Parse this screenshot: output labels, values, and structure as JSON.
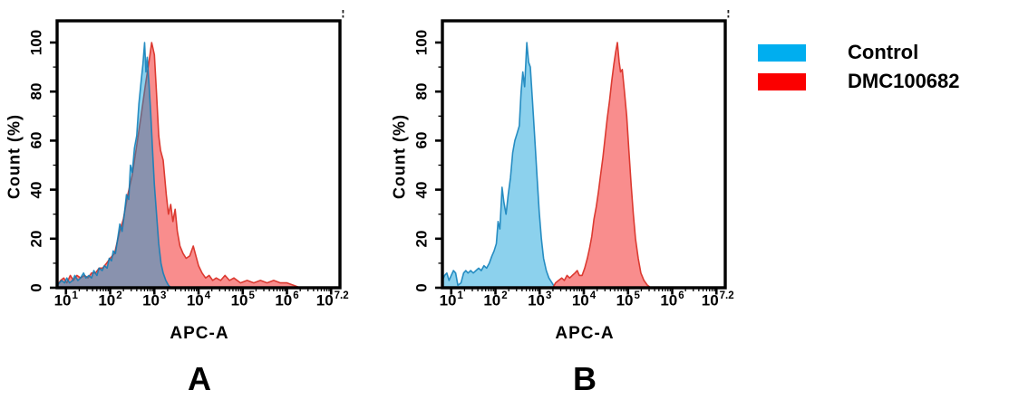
{
  "figure": {
    "background_color": "#ffffff",
    "frame_color": "#000000",
    "panels": [
      {
        "label": "A"
      },
      {
        "label": "B"
      }
    ],
    "legend": {
      "position": "right",
      "items": [
        {
          "label": "Control",
          "color": "#00AEEF"
        },
        {
          "label": "DMC100682",
          "color": "#FB0000"
        }
      ]
    }
  },
  "chart_data": [
    {
      "type": "area",
      "panel": "A",
      "title": "",
      "xlabel": "APC-A",
      "ylabel": "Count (%)",
      "x_scale": "log10",
      "x_range_log10": [
        0.8,
        7.2
      ],
      "ylim": [
        0,
        100
      ],
      "grid": false,
      "legend_position": "right-of-figure",
      "x_major_tick_logs": [
        1,
        2,
        3,
        4,
        5,
        6,
        7
      ],
      "x_tick_labels": [
        {
          "base": "10",
          "exp": "1",
          "at": 1
        },
        {
          "base": "10",
          "exp": "2",
          "at": 2
        },
        {
          "base": "10",
          "exp": "3",
          "at": 3
        },
        {
          "base": "10",
          "exp": "4",
          "at": 4
        },
        {
          "base": "10",
          "exp": "5",
          "at": 5
        },
        {
          "base": "10",
          "exp": "6",
          "at": 6
        },
        {
          "base": "10",
          "exp": "7.2",
          "at": 7.03
        }
      ],
      "y_ticks": [
        {
          "label": "0",
          "value": 0
        },
        {
          "label": "20",
          "value": 20
        },
        {
          "label": "40",
          "value": 40
        },
        {
          "label": "60",
          "value": 60
        },
        {
          "label": "80",
          "value": 80
        },
        {
          "label": "100",
          "value": 100
        }
      ],
      "series": [
        {
          "name": "DMC100682",
          "fill": "#F98D8D",
          "stroke": "#DC3A31",
          "peak_log10_x": 2.94,
          "peak_pct": 100,
          "points_log10x_pct": [
            [
              0.8,
              1
            ],
            [
              0.88,
              3
            ],
            [
              0.95,
              4
            ],
            [
              1.02,
              2
            ],
            [
              1.1,
              5
            ],
            [
              1.17,
              3
            ],
            [
              1.25,
              5
            ],
            [
              1.33,
              4
            ],
            [
              1.42,
              5
            ],
            [
              1.5,
              4
            ],
            [
              1.58,
              6
            ],
            [
              1.67,
              6
            ],
            [
              1.75,
              8
            ],
            [
              1.83,
              8
            ],
            [
              1.92,
              10
            ],
            [
              2.0,
              12
            ],
            [
              2.1,
              14
            ],
            [
              2.2,
              22
            ],
            [
              2.3,
              28
            ],
            [
              2.4,
              38
            ],
            [
              2.5,
              46
            ],
            [
              2.6,
              58
            ],
            [
              2.7,
              70
            ],
            [
              2.8,
              83
            ],
            [
              2.87,
              91
            ],
            [
              2.94,
              100
            ],
            [
              3.0,
              95
            ],
            [
              3.05,
              79
            ],
            [
              3.1,
              62
            ],
            [
              3.14,
              56
            ],
            [
              3.2,
              52
            ],
            [
              3.27,
              38
            ],
            [
              3.32,
              30
            ],
            [
              3.37,
              34
            ],
            [
              3.42,
              27
            ],
            [
              3.47,
              32
            ],
            [
              3.52,
              23
            ],
            [
              3.58,
              17
            ],
            [
              3.65,
              14
            ],
            [
              3.72,
              12
            ],
            [
              3.8,
              13
            ],
            [
              3.88,
              17
            ],
            [
              3.94,
              13
            ],
            [
              4.0,
              9
            ],
            [
              4.08,
              6
            ],
            [
              4.16,
              4
            ],
            [
              4.24,
              5
            ],
            [
              4.32,
              3
            ],
            [
              4.4,
              4
            ],
            [
              4.5,
              3
            ],
            [
              4.6,
              5
            ],
            [
              4.7,
              3
            ],
            [
              4.8,
              4
            ],
            [
              4.95,
              2
            ],
            [
              5.1,
              3
            ],
            [
              5.25,
              2
            ],
            [
              5.4,
              3
            ],
            [
              5.55,
              2
            ],
            [
              5.7,
              3
            ],
            [
              5.85,
              2
            ],
            [
              6.0,
              2
            ],
            [
              6.15,
              1
            ],
            [
              6.3,
              0
            ]
          ]
        },
        {
          "name": "Control",
          "fill": "rgba(0,153,215,0.45)",
          "stroke": "rgba(10,125,185,0.85)",
          "peak_log10_x": 2.78,
          "peak_pct": 100,
          "points_log10x_pct": [
            [
              0.8,
              1
            ],
            [
              0.85,
              2
            ],
            [
              0.9,
              3
            ],
            [
              0.97,
              2
            ],
            [
              1.02,
              4
            ],
            [
              1.08,
              2
            ],
            [
              1.15,
              3
            ],
            [
              1.2,
              5
            ],
            [
              1.27,
              3
            ],
            [
              1.33,
              4
            ],
            [
              1.4,
              6
            ],
            [
              1.45,
              4
            ],
            [
              1.52,
              5
            ],
            [
              1.58,
              4
            ],
            [
              1.63,
              7
            ],
            [
              1.7,
              5
            ],
            [
              1.75,
              8
            ],
            [
              1.82,
              7
            ],
            [
              1.87,
              9
            ],
            [
              1.93,
              8
            ],
            [
              1.98,
              12
            ],
            [
              2.03,
              11
            ],
            [
              2.07,
              15
            ],
            [
              2.12,
              14
            ],
            [
              2.17,
              20
            ],
            [
              2.22,
              26
            ],
            [
              2.27,
              23
            ],
            [
              2.32,
              30
            ],
            [
              2.37,
              38
            ],
            [
              2.42,
              36
            ],
            [
              2.46,
              50
            ],
            [
              2.5,
              47
            ],
            [
              2.55,
              57
            ],
            [
              2.6,
              62
            ],
            [
              2.65,
              75
            ],
            [
              2.7,
              84
            ],
            [
              2.74,
              91
            ],
            [
              2.78,
              100
            ],
            [
              2.81,
              88
            ],
            [
              2.84,
              94
            ],
            [
              2.88,
              83
            ],
            [
              2.92,
              71
            ],
            [
              2.96,
              56
            ],
            [
              3.0,
              42
            ],
            [
              3.05,
              30
            ],
            [
              3.1,
              18
            ],
            [
              3.15,
              10
            ],
            [
              3.2,
              6
            ],
            [
              3.26,
              3
            ],
            [
              3.32,
              1
            ],
            [
              3.38,
              0
            ]
          ]
        }
      ]
    },
    {
      "type": "area",
      "panel": "B",
      "title": "",
      "xlabel": "APC-A",
      "ylabel": "Count (%)",
      "x_scale": "log10",
      "x_range_log10": [
        0.8,
        7.2
      ],
      "ylim": [
        0,
        100
      ],
      "grid": false,
      "legend_position": "right-of-figure",
      "x_major_tick_logs": [
        1,
        2,
        3,
        4,
        5,
        6,
        7
      ],
      "x_tick_labels": [
        {
          "base": "10",
          "exp": "1",
          "at": 1
        },
        {
          "base": "10",
          "exp": "2",
          "at": 2
        },
        {
          "base": "10",
          "exp": "3",
          "at": 3
        },
        {
          "base": "10",
          "exp": "4",
          "at": 4
        },
        {
          "base": "10",
          "exp": "5",
          "at": 5
        },
        {
          "base": "10",
          "exp": "6",
          "at": 6
        },
        {
          "base": "10",
          "exp": "7.2",
          "at": 7.03
        }
      ],
      "y_ticks": [
        {
          "label": "0",
          "value": 0
        },
        {
          "label": "20",
          "value": 20
        },
        {
          "label": "40",
          "value": 40
        },
        {
          "label": "60",
          "value": 60
        },
        {
          "label": "80",
          "value": 80
        },
        {
          "label": "100",
          "value": 100
        }
      ],
      "series": [
        {
          "name": "Control",
          "fill": "rgba(0,153,215,0.45)",
          "stroke": "rgba(10,125,185,0.85)",
          "peak_log10_x": 2.71,
          "peak_pct": 100,
          "points_log10x_pct": [
            [
              0.8,
              3
            ],
            [
              0.85,
              5
            ],
            [
              0.9,
              6
            ],
            [
              0.95,
              3
            ],
            [
              1.0,
              5
            ],
            [
              1.05,
              7
            ],
            [
              1.1,
              6
            ],
            [
              1.15,
              1
            ],
            [
              1.22,
              2
            ],
            [
              1.28,
              6
            ],
            [
              1.33,
              7
            ],
            [
              1.38,
              6
            ],
            [
              1.44,
              7
            ],
            [
              1.5,
              6
            ],
            [
              1.56,
              7
            ],
            [
              1.62,
              8
            ],
            [
              1.68,
              7
            ],
            [
              1.74,
              9
            ],
            [
              1.8,
              8
            ],
            [
              1.86,
              10
            ],
            [
              1.92,
              13
            ],
            [
              1.97,
              15
            ],
            [
              2.02,
              18
            ],
            [
              2.06,
              27
            ],
            [
              2.1,
              24
            ],
            [
              2.15,
              41
            ],
            [
              2.19,
              35
            ],
            [
              2.24,
              30
            ],
            [
              2.29,
              38
            ],
            [
              2.34,
              45
            ],
            [
              2.39,
              55
            ],
            [
              2.44,
              60
            ],
            [
              2.49,
              63
            ],
            [
              2.54,
              66
            ],
            [
              2.58,
              80
            ],
            [
              2.62,
              88
            ],
            [
              2.66,
              82
            ],
            [
              2.71,
              100
            ],
            [
              2.75,
              92
            ],
            [
              2.79,
              90
            ],
            [
              2.84,
              76
            ],
            [
              2.89,
              61
            ],
            [
              2.94,
              46
            ],
            [
              2.99,
              31
            ],
            [
              3.04,
              20
            ],
            [
              3.09,
              12
            ],
            [
              3.15,
              7
            ],
            [
              3.21,
              4
            ],
            [
              3.28,
              2
            ],
            [
              3.35,
              0
            ]
          ]
        },
        {
          "name": "DMC100682",
          "fill": "#F98D8D",
          "stroke": "#DC3A31",
          "peak_log10_x": 4.76,
          "peak_pct": 100,
          "points_log10x_pct": [
            [
              3.3,
              0
            ],
            [
              3.36,
              2
            ],
            [
              3.43,
              3
            ],
            [
              3.5,
              4
            ],
            [
              3.56,
              3
            ],
            [
              3.62,
              5
            ],
            [
              3.68,
              4
            ],
            [
              3.74,
              5
            ],
            [
              3.8,
              6
            ],
            [
              3.85,
              7
            ],
            [
              3.9,
              5
            ],
            [
              3.96,
              5
            ],
            [
              4.02,
              8
            ],
            [
              4.08,
              12
            ],
            [
              4.13,
              16
            ],
            [
              4.18,
              21
            ],
            [
              4.23,
              28
            ],
            [
              4.28,
              33
            ],
            [
              4.33,
              39
            ],
            [
              4.38,
              46
            ],
            [
              4.43,
              53
            ],
            [
              4.48,
              61
            ],
            [
              4.53,
              69
            ],
            [
              4.58,
              76
            ],
            [
              4.63,
              84
            ],
            [
              4.68,
              91
            ],
            [
              4.72,
              96
            ],
            [
              4.76,
              100
            ],
            [
              4.8,
              92
            ],
            [
              4.83,
              88
            ],
            [
              4.87,
              89
            ],
            [
              4.92,
              80
            ],
            [
              4.97,
              70
            ],
            [
              5.02,
              56
            ],
            [
              5.07,
              42
            ],
            [
              5.12,
              30
            ],
            [
              5.17,
              20
            ],
            [
              5.23,
              12
            ],
            [
              5.29,
              6
            ],
            [
              5.36,
              3
            ],
            [
              5.44,
              1
            ],
            [
              5.52,
              0
            ]
          ]
        }
      ]
    }
  ]
}
